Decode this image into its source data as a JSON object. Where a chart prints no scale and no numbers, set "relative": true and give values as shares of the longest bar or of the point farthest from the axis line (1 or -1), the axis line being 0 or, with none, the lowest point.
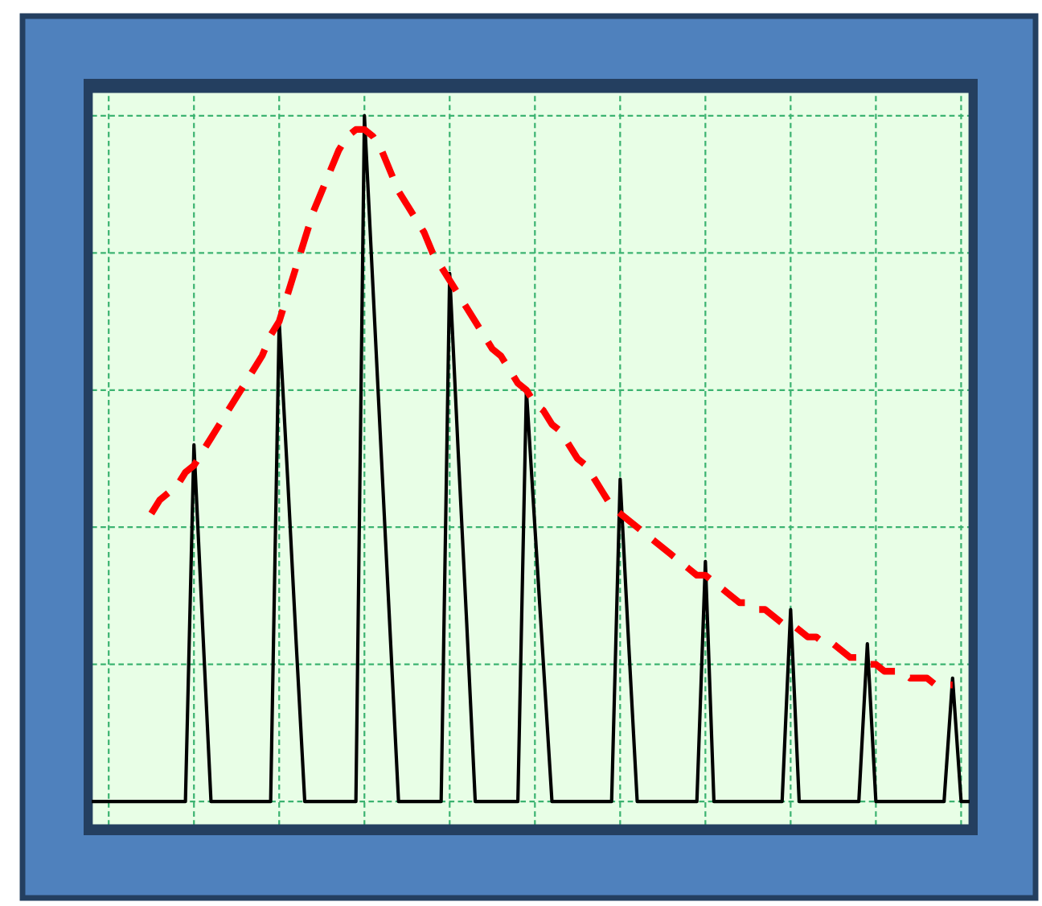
{
  "chart_data": {
    "type": "line",
    "relative": true,
    "grid": true,
    "categories": [
      null,
      null,
      null,
      null,
      null,
      null,
      null,
      null,
      null,
      null,
      null,
      null,
      null,
      null,
      null,
      null,
      null,
      null,
      null,
      null,
      null,
      null,
      null,
      null,
      null,
      null,
      null,
      null,
      null,
      null,
      null,
      null,
      null,
      null,
      null,
      null,
      null,
      null,
      null,
      null,
      null,
      null,
      null,
      null,
      null,
      null,
      null,
      null,
      null,
      null,
      null,
      null,
      null,
      null,
      null,
      null,
      null,
      null,
      null,
      null,
      null,
      null,
      null,
      null,
      null,
      null,
      null,
      null,
      null,
      null,
      null,
      null,
      null,
      null,
      null,
      null,
      null,
      null,
      null,
      null,
      null,
      null,
      null,
      null,
      null,
      null,
      null,
      null,
      null,
      null,
      null,
      null,
      null,
      null,
      null,
      null,
      null,
      null,
      null,
      null,
      null,
      null,
      null,
      null
    ],
    "series": [
      {
        "color": "#000000",
        "line_style": "solid",
        "values": [
          0,
          0,
          0,
          0,
          0,
          0,
          0,
          0,
          0,
          0,
          0,
          0,
          0.52,
          0.26,
          0,
          0,
          0,
          0,
          0,
          0,
          0,
          0,
          0.7,
          0.47,
          0.23,
          0,
          0,
          0,
          0,
          0,
          0,
          0,
          1.0,
          0.75,
          0.5,
          0.25,
          0,
          0,
          0,
          0,
          0,
          0,
          0.77,
          0.51,
          0.26,
          0,
          0,
          0,
          0,
          0,
          0,
          0.6,
          0.4,
          0.2,
          0,
          0,
          0,
          0,
          0,
          0,
          0,
          0,
          0.47,
          0.23,
          0,
          0,
          0,
          0,
          0,
          0,
          0,
          0,
          0.35,
          0,
          0,
          0,
          0,
          0,
          0,
          0,
          0,
          0,
          0.28,
          0,
          0,
          0,
          0,
          0,
          0,
          0,
          0,
          0.23,
          0,
          0,
          0,
          0,
          0,
          0,
          0,
          0,
          0,
          0.18,
          0,
          0
        ]
      },
      {
        "color": "#ff0000",
        "line_style": "dashed",
        "values": [
          null,
          null,
          null,
          null,
          null,
          null,
          null,
          0.42,
          0.44,
          0.45,
          0.46,
          0.48,
          0.49,
          0.51,
          0.53,
          0.55,
          0.57,
          0.59,
          0.61,
          0.63,
          0.65,
          0.68,
          0.7,
          0.74,
          0.78,
          0.82,
          0.86,
          0.89,
          0.92,
          0.95,
          0.97,
          0.98,
          0.98,
          0.97,
          0.95,
          0.92,
          0.89,
          0.87,
          0.85,
          0.83,
          0.8,
          0.78,
          0.76,
          0.74,
          0.72,
          0.7,
          0.68,
          0.66,
          0.65,
          0.63,
          0.61,
          0.6,
          0.58,
          0.57,
          0.55,
          0.54,
          0.52,
          0.5,
          0.49,
          0.47,
          0.45,
          0.43,
          0.42,
          0.41,
          0.4,
          0.39,
          0.38,
          0.37,
          0.36,
          0.35,
          0.34,
          0.33,
          0.33,
          0.32,
          0.31,
          0.3,
          0.29,
          0.29,
          0.28,
          0.28,
          0.27,
          0.26,
          0.26,
          0.25,
          0.24,
          0.24,
          0.23,
          0.23,
          0.22,
          0.21,
          0.21,
          0.2,
          0.2,
          0.19,
          0.19,
          0.19,
          0.18,
          0.18,
          0.18,
          0.17,
          0.17,
          0.17,
          null,
          null
        ]
      }
    ]
  }
}
